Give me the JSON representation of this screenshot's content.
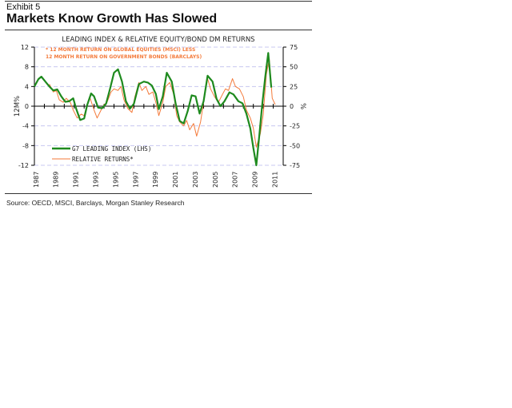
{
  "header": {
    "exhibit": "Exhibit 5",
    "title": "Markets Know Growth Has Slowed"
  },
  "source": "Source: OECD, MSCI, Barclays, Morgan Stanley Research",
  "chart_data": {
    "type": "line",
    "title": "LEADING INDEX & RELATIVE EQUITY/BOND DM RETURNS",
    "note_lines": [
      "* 12 MONTH RETURN ON GLOBAL EQUITIES (MSCI) LESS",
      "12 MONTH RETURN ON GOVERNMENT BONDS (BARCLAYS)"
    ],
    "ylabel_left": "12M%",
    "ylabel_right": "%",
    "ylim_left": [
      -12,
      12
    ],
    "ylim_right": [
      -75,
      75
    ],
    "yticks_left": [
      "12",
      "8",
      "4",
      "0",
      "-4",
      "-8",
      "-12"
    ],
    "yticks_right": [
      "75",
      "50",
      "25",
      "0",
      "-25",
      "-50",
      "-75"
    ],
    "xlim": [
      1987,
      2012
    ],
    "xtick_labels": [
      "1987",
      "1989",
      "1991",
      "1993",
      "1995",
      "1997",
      "1999",
      "2001",
      "2003",
      "2005",
      "2007",
      "2009",
      "2011"
    ],
    "grid": "horizontal dashed",
    "legend_position": "bottom-left",
    "colors": {
      "leading": "#1e8a1e",
      "relative": "#f47a3a",
      "note": "#f47a3a"
    },
    "series": [
      {
        "name": "G7 LEADING INDEX (LHS)",
        "axis": "left",
        "x": [
          1987.0,
          1987.4,
          1987.7,
          1988.1,
          1988.5,
          1988.9,
          1989.3,
          1989.7,
          1990.1,
          1990.5,
          1990.9,
          1991.2,
          1991.6,
          1992.0,
          1992.3,
          1992.7,
          1993.0,
          1993.4,
          1993.8,
          1994.2,
          1994.6,
          1995.0,
          1995.4,
          1995.8,
          1996.2,
          1996.6,
          1997.0,
          1997.5,
          1998.0,
          1998.4,
          1998.8,
          1999.2,
          1999.5,
          1999.9,
          2000.3,
          2000.8,
          2001.2,
          2001.6,
          2002.0,
          2002.4,
          2002.8,
          2003.2,
          2003.6,
          2004.0,
          2004.4,
          2004.9,
          2005.3,
          2005.7,
          2006.1,
          2006.6,
          2007.0,
          2007.5,
          2007.9,
          2008.3,
          2008.7,
          2009.0,
          2009.3,
          2009.6,
          2009.9,
          2010.2,
          2010.5,
          2010.8
        ],
        "values": [
          4.0,
          5.5,
          6.0,
          5.0,
          4.0,
          3.2,
          3.4,
          2.0,
          0.9,
          1.0,
          1.6,
          -0.5,
          -2.8,
          -2.5,
          0.2,
          2.6,
          2.0,
          -0.3,
          -0.4,
          0.5,
          3.5,
          6.8,
          7.5,
          5.0,
          1.0,
          -0.5,
          0.5,
          4.5,
          5.0,
          4.8,
          4.2,
          2.5,
          -0.6,
          2.0,
          6.8,
          5.0,
          0.5,
          -3.0,
          -3.5,
          -1.0,
          2.2,
          2.0,
          -1.5,
          1.0,
          6.2,
          5.0,
          1.5,
          0.0,
          1.0,
          2.8,
          2.4,
          1.0,
          0.6,
          -1.5,
          -4.5,
          -8.5,
          -12.0,
          -6.0,
          0.5,
          6.0,
          10.8,
          3.8
        ]
      },
      {
        "name": "RELATIVE RETURNS*",
        "axis": "right",
        "x": [
          1988.5,
          1988.9,
          1989.2,
          1989.5,
          1989.9,
          1990.2,
          1990.6,
          1990.9,
          1991.3,
          1991.7,
          1992.0,
          1992.3,
          1992.6,
          1993.0,
          1993.3,
          1993.7,
          1994.0,
          1994.3,
          1994.7,
          1995.0,
          1995.4,
          1995.7,
          1996.0,
          1996.4,
          1996.8,
          1997.1,
          1997.5,
          1997.8,
          1998.2,
          1998.5,
          1998.9,
          1999.2,
          1999.5,
          1999.9,
          2000.2,
          2000.6,
          2001.0,
          2001.3,
          2001.6,
          2002.0,
          2002.3,
          2002.6,
          2003.0,
          2003.3,
          2003.7,
          2004.0,
          2004.4,
          2004.7,
          2005.1,
          2005.5,
          2005.9,
          2006.2,
          2006.5,
          2006.9,
          2007.2,
          2007.6,
          2008.0,
          2008.3,
          2008.7,
          2009.0,
          2009.3,
          2009.7,
          2010.0,
          2010.3,
          2010.6,
          2010.9,
          2011.2
        ],
        "values": [
          28,
          18,
          20,
          8,
          5,
          10,
          5,
          -5,
          -15,
          -10,
          -12,
          2,
          10,
          -5,
          -15,
          -5,
          2,
          5,
          18,
          22,
          20,
          25,
          8,
          -3,
          -8,
          12,
          30,
          20,
          25,
          15,
          18,
          5,
          -12,
          5,
          25,
          30,
          15,
          -12,
          -20,
          -25,
          -18,
          -30,
          -22,
          -38,
          -20,
          5,
          35,
          22,
          12,
          5,
          15,
          22,
          20,
          35,
          25,
          22,
          12,
          -5,
          -15,
          -28,
          -52,
          -35,
          -10,
          40,
          60,
          10,
          2
        ]
      }
    ]
  }
}
